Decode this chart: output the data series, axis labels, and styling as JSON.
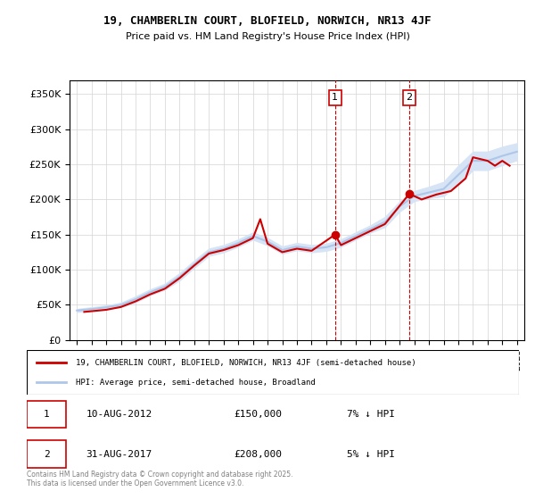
{
  "title": "19, CHAMBERLIN COURT, BLOFIELD, NORWICH, NR13 4JF",
  "subtitle": "Price paid vs. HM Land Registry's House Price Index (HPI)",
  "legend_line1": "19, CHAMBERLIN COURT, BLOFIELD, NORWICH, NR13 4JF (semi-detached house)",
  "legend_line2": "HPI: Average price, semi-detached house, Broadland",
  "annotation1_label": "1",
  "annotation1_date": "10-AUG-2012",
  "annotation1_price": "£150,000",
  "annotation1_hpi": "7% ↓ HPI",
  "annotation2_label": "2",
  "annotation2_date": "31-AUG-2017",
  "annotation2_price": "£208,000",
  "annotation2_hpi": "5% ↓ HPI",
  "footer": "Contains HM Land Registry data © Crown copyright and database right 2025.\nThis data is licensed under the Open Government Licence v3.0.",
  "hpi_color": "#aec6e8",
  "price_color": "#cc0000",
  "marker_color": "#cc0000",
  "shaded_color": "#d6e4f5",
  "annotation_box_color": "#cc0000",
  "ylim": [
    0,
    370000
  ],
  "yticks": [
    0,
    50000,
    100000,
    150000,
    200000,
    250000,
    300000,
    350000
  ],
  "ytick_labels": [
    "£0",
    "£50K",
    "£100K",
    "£150K",
    "£200K",
    "£250K",
    "£300K",
    "£350K"
  ],
  "year_start": 1995,
  "year_end": 2025,
  "sale1_year": 2012.6,
  "sale1_price": 150000,
  "sale2_year": 2017.66,
  "sale2_price": 208000,
  "hpi_years": [
    1995,
    1996,
    1997,
    1998,
    1999,
    2000,
    2001,
    2002,
    2003,
    2004,
    2005,
    2006,
    2007,
    2008,
    2009,
    2010,
    2011,
    2012,
    2013,
    2014,
    2015,
    2016,
    2017,
    2018,
    2019,
    2020,
    2021,
    2022,
    2023,
    2024,
    2025
  ],
  "hpi_values": [
    42000,
    44000,
    46500,
    50000,
    58000,
    68000,
    76000,
    90000,
    108000,
    125000,
    130000,
    138000,
    148000,
    140000,
    128000,
    133000,
    130000,
    132000,
    138000,
    148000,
    158000,
    168000,
    190000,
    205000,
    210000,
    215000,
    235000,
    255000,
    255000,
    262000,
    268000
  ],
  "hpi_upper": [
    44000,
    46500,
    49000,
    53000,
    62000,
    72000,
    80000,
    95000,
    113000,
    130000,
    135000,
    143000,
    153000,
    145000,
    133000,
    138000,
    135000,
    137000,
    143000,
    153000,
    163000,
    175000,
    197000,
    212000,
    218000,
    225000,
    248000,
    268000,
    268000,
    275000,
    280000
  ],
  "hpi_lower": [
    40000,
    42000,
    44000,
    47000,
    54000,
    64000,
    72000,
    85000,
    103000,
    120000,
    125000,
    133000,
    143000,
    135000,
    123000,
    128000,
    125000,
    127000,
    133000,
    143000,
    153000,
    161000,
    183000,
    198000,
    202000,
    205000,
    222000,
    242000,
    242000,
    249000,
    256000
  ],
  "price_years": [
    1995.5,
    1996.0,
    1997.0,
    1998.0,
    1999.0,
    2000.0,
    2001.0,
    2002.0,
    2003.0,
    2004.0,
    2005.0,
    2006.0,
    2007.0,
    2007.5,
    2008.0,
    2009.0,
    2010.0,
    2011.0,
    2012.6,
    2013.0,
    2014.0,
    2015.0,
    2016.0,
    2017.66,
    2018.5,
    2019.5,
    2020.5,
    2021.5,
    2022.0,
    2023.0,
    2023.5,
    2024.0,
    2024.5
  ],
  "price_values": [
    40000,
    41000,
    43000,
    47000,
    55000,
    65000,
    73000,
    88000,
    106000,
    123000,
    128000,
    135000,
    145000,
    172000,
    137000,
    125000,
    130000,
    127000,
    150000,
    135000,
    145000,
    155000,
    165000,
    208000,
    200000,
    207000,
    212000,
    230000,
    260000,
    255000,
    248000,
    255000,
    248000
  ]
}
